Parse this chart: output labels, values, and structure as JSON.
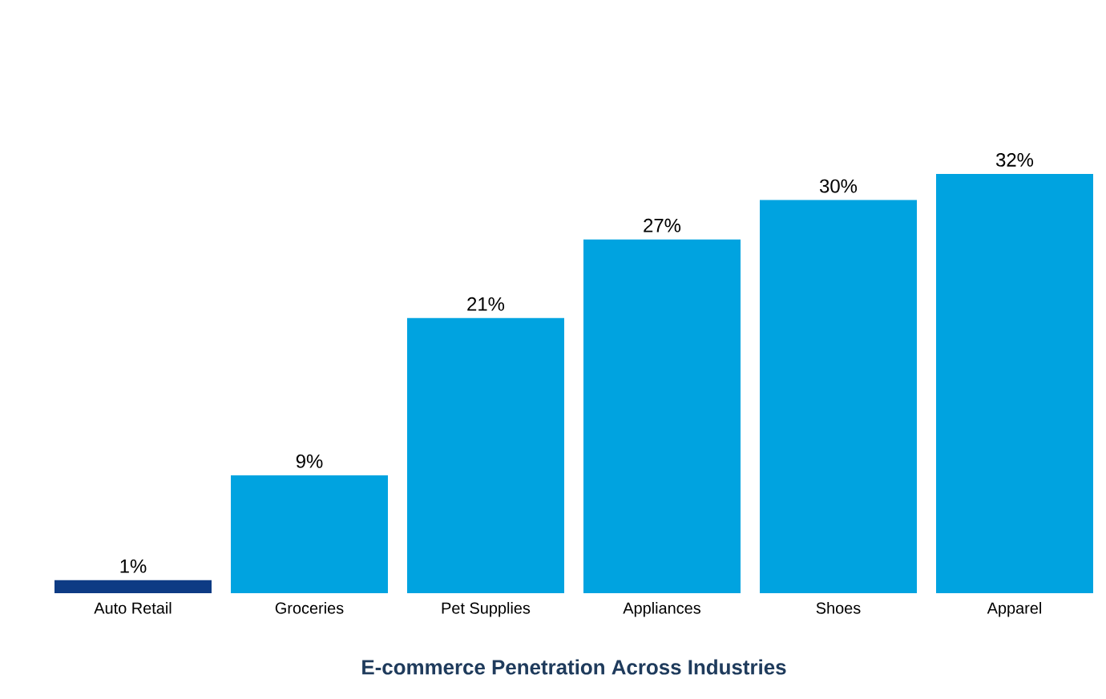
{
  "chart_data": {
    "type": "bar",
    "title": "E-commerce Penetration Across Industries",
    "categories": [
      "Auto Retail",
      "Groceries",
      "Pet Supplies",
      "Appliances",
      "Shoes",
      "Apparel"
    ],
    "values": [
      1,
      9,
      21,
      27,
      30,
      32
    ],
    "value_labels": [
      "1%",
      "9%",
      "21%",
      "27%",
      "30%",
      "32%"
    ],
    "colors": [
      "#0d3b84",
      "#00a3e0",
      "#00a3e0",
      "#00a3e0",
      "#00a3e0",
      "#00a3e0"
    ],
    "tick_labels": "x"
  }
}
